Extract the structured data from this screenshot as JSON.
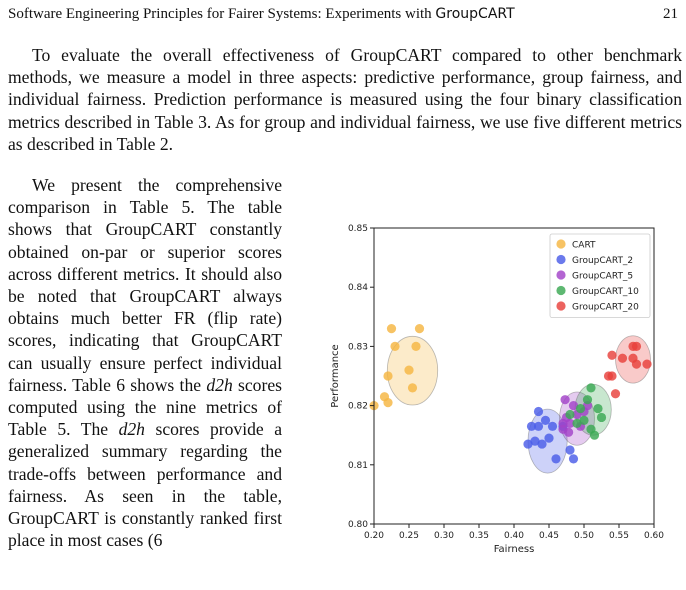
{
  "header": {
    "title_prefix": "Software Engineering Principles for Fairer Systems: Experiments with ",
    "title_sans": "GroupCART",
    "page_number": "21"
  },
  "paragraph1": "To evaluate the overall effectiveness of GroupCART compared to other benchmark methods, we measure a model in three aspects: predictive performance, group fairness, and individual fairness. Prediction performance is measured using the four binary classification metrics described in Table 3. As for group and individual fairness, we use five different metrics as described in Table 2.",
  "paragraph2": {
    "part1": "We present the comprehensive comparison in Table 5. The table shows that GroupCART constantly obtained on-par or superior scores across different metrics. It should also be noted that GroupCART always obtains much better FR (flip rate) scores, indicating that GroupCART can usually ensure perfect individual fairness. Table 6 shows the ",
    "em1": "d2h",
    "part2": " scores computed using the nine metrics of Table 5. The ",
    "em2": "d2h",
    "part3": " scores provide a generalized summary regarding the trade-offs between performance and fairness. As seen in the table, GroupCART is constantly ranked first place in most cases (6"
  },
  "chart_data": {
    "type": "scatter",
    "xlabel": "Fairness",
    "ylabel": "Performance",
    "xlim": [
      0.2,
      0.6
    ],
    "ylim": [
      0.8,
      0.85
    ],
    "xticks": [
      "0.20",
      "0.25",
      "0.30",
      "0.35",
      "0.40",
      "0.45",
      "0.50",
      "0.55",
      "0.60"
    ],
    "yticks": [
      "0.80",
      "0.81",
      "0.82",
      "0.83",
      "0.84",
      "0.85"
    ],
    "legend_position": "top-right",
    "series": [
      {
        "name": "CART",
        "color": "#f5b642",
        "ellipse": {
          "cx": 0.255,
          "cy": 0.8259,
          "rx": 0.036,
          "ry": 0.0058
        },
        "points": [
          [
            0.2,
            0.82
          ],
          [
            0.215,
            0.8215
          ],
          [
            0.22,
            0.8205
          ],
          [
            0.22,
            0.825
          ],
          [
            0.225,
            0.833
          ],
          [
            0.23,
            0.83
          ],
          [
            0.25,
            0.826
          ],
          [
            0.255,
            0.823
          ],
          [
            0.26,
            0.83
          ],
          [
            0.265,
            0.833
          ]
        ]
      },
      {
        "name": "GroupCART_2",
        "color": "#4a5de8",
        "ellipse": {
          "cx": 0.448,
          "cy": 0.814,
          "rx": 0.028,
          "ry": 0.0054
        },
        "points": [
          [
            0.42,
            0.8135
          ],
          [
            0.425,
            0.8165
          ],
          [
            0.43,
            0.814
          ],
          [
            0.435,
            0.8165
          ],
          [
            0.435,
            0.819
          ],
          [
            0.44,
            0.8135
          ],
          [
            0.445,
            0.8175
          ],
          [
            0.45,
            0.8145
          ],
          [
            0.455,
            0.8165
          ],
          [
            0.46,
            0.811
          ],
          [
            0.47,
            0.8165
          ],
          [
            0.48,
            0.8125
          ],
          [
            0.485,
            0.811
          ]
        ]
      },
      {
        "name": "GroupCART_5",
        "color": "#a243c8",
        "ellipse": {
          "cx": 0.49,
          "cy": 0.8178,
          "rx": 0.025,
          "ry": 0.0045
        },
        "points": [
          [
            0.47,
            0.816
          ],
          [
            0.47,
            0.817
          ],
          [
            0.473,
            0.821
          ],
          [
            0.475,
            0.818
          ],
          [
            0.478,
            0.8155
          ],
          [
            0.48,
            0.817
          ],
          [
            0.485,
            0.82
          ],
          [
            0.49,
            0.8185
          ],
          [
            0.495,
            0.8165
          ],
          [
            0.5,
            0.819
          ],
          [
            0.505,
            0.82
          ]
        ]
      },
      {
        "name": "GroupCART_10",
        "color": "#3aa853",
        "ellipse": {
          "cx": 0.513,
          "cy": 0.8193,
          "rx": 0.026,
          "ry": 0.0043
        },
        "points": [
          [
            0.48,
            0.8185
          ],
          [
            0.49,
            0.817
          ],
          [
            0.495,
            0.8195
          ],
          [
            0.5,
            0.8175
          ],
          [
            0.505,
            0.821
          ],
          [
            0.51,
            0.816
          ],
          [
            0.51,
            0.823
          ],
          [
            0.515,
            0.815
          ],
          [
            0.52,
            0.8195
          ],
          [
            0.525,
            0.818
          ]
        ]
      },
      {
        "name": "GroupCART_20",
        "color": "#e8413c",
        "ellipse": {
          "cx": 0.57,
          "cy": 0.8278,
          "rx": 0.025,
          "ry": 0.004
        },
        "points": [
          [
            0.535,
            0.825
          ],
          [
            0.54,
            0.825
          ],
          [
            0.54,
            0.8285
          ],
          [
            0.545,
            0.822
          ],
          [
            0.555,
            0.828
          ],
          [
            0.57,
            0.83
          ],
          [
            0.57,
            0.828
          ],
          [
            0.575,
            0.827
          ],
          [
            0.575,
            0.83
          ],
          [
            0.59,
            0.827
          ]
        ]
      }
    ]
  }
}
